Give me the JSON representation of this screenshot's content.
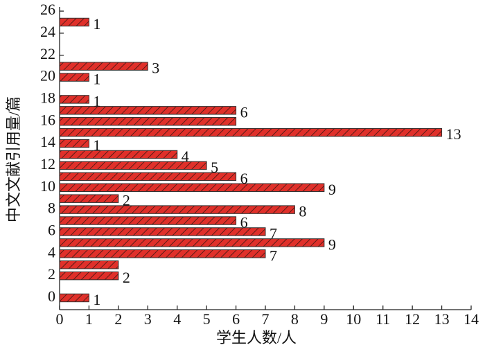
{
  "chart_data": {
    "type": "bar",
    "orientation": "horizontal",
    "x_label": "学生人数/人",
    "y_label": "中文文献引用量/篇",
    "y": [
      0,
      2,
      3,
      4,
      5,
      6,
      7,
      8,
      9,
      10,
      11,
      12,
      13,
      14,
      15,
      16,
      17,
      18,
      20,
      21,
      25
    ],
    "values": [
      1,
      2,
      2,
      7,
      9,
      7,
      6,
      8,
      2,
      9,
      6,
      5,
      4,
      1,
      13,
      6,
      6,
      1,
      1,
      3,
      1
    ],
    "value_labels": [
      1,
      2,
      null,
      7,
      9,
      7,
      6,
      8,
      2,
      9,
      6,
      5,
      4,
      1,
      13,
      null,
      6,
      1,
      1,
      3,
      1
    ],
    "color": "#e0302a",
    "xlim": [
      0,
      14
    ],
    "xticks": [
      0,
      1,
      2,
      3,
      4,
      5,
      6,
      7,
      8,
      9,
      10,
      11,
      12,
      13,
      14
    ],
    "ylim": [
      -1.07,
      26.38
    ],
    "yticks": [
      0,
      2,
      4,
      6,
      8,
      10,
      12,
      14,
      16,
      18,
      20,
      22,
      24,
      26
    ]
  }
}
